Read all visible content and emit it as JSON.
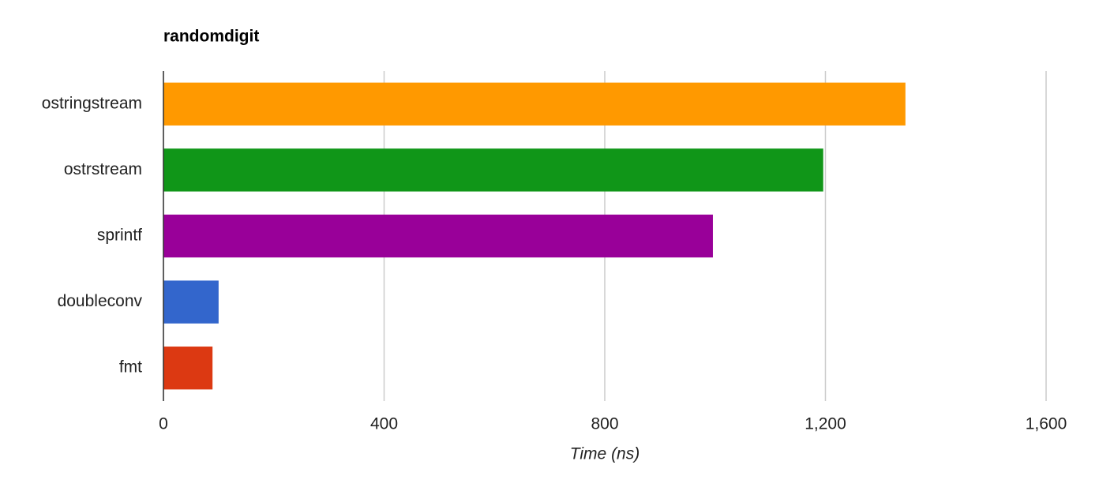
{
  "chart_data": {
    "type": "hbar",
    "title": "randomdigit",
    "x_label": "Time (ns)",
    "categories": [
      "ostringstream",
      "ostrstream",
      "sprintf",
      "doubleconv",
      "fmt"
    ],
    "values": [
      1345,
      1196,
      996,
      100,
      89
    ],
    "colors": [
      "#ff9900",
      "#109618",
      "#990099",
      "#3366cc",
      "#dc3912"
    ],
    "xlim": [
      0,
      1600
    ],
    "xticks": [
      0,
      400,
      800,
      {
        "value": 1200,
        "label": "1,200"
      },
      {
        "value": 1600,
        "label": "1,600"
      }
    ],
    "grid": true
  }
}
